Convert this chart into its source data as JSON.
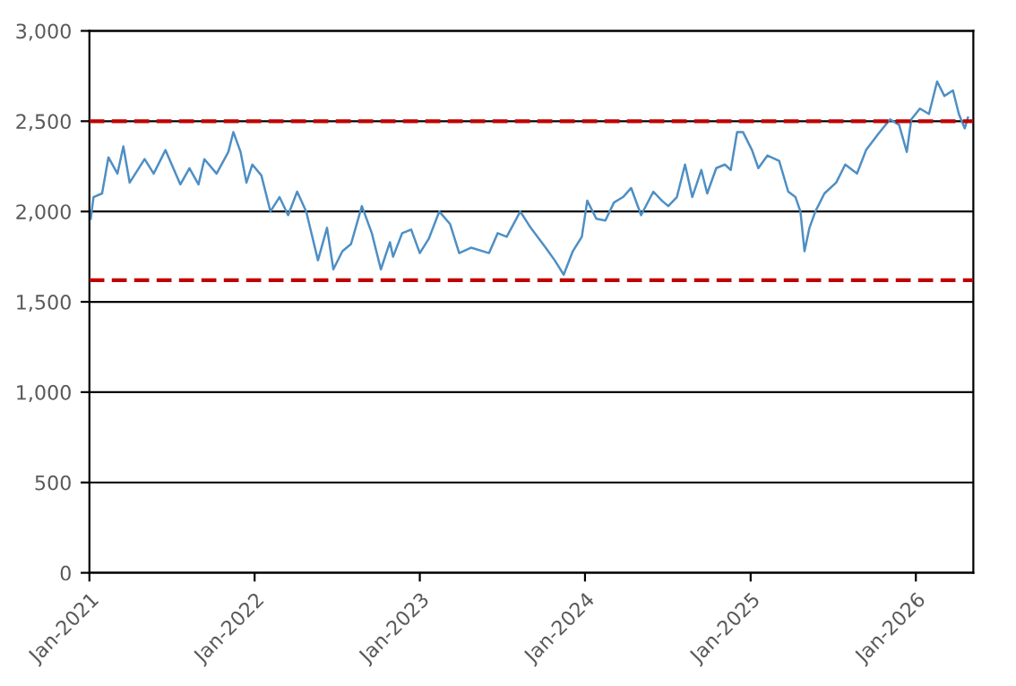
{
  "chart_data": {
    "type": "line",
    "x": [
      "2021-01-04",
      "2021-01-10",
      "2021-01-29",
      "2021-02-12",
      "2021-03-04",
      "2021-03-17",
      "2021-03-31",
      "2021-05-03",
      "2021-05-23",
      "2021-06-18",
      "2021-07-21",
      "2021-08-10",
      "2021-08-30",
      "2021-09-12",
      "2021-10-09",
      "2021-11-04",
      "2021-11-15",
      "2021-12-01",
      "2021-12-14",
      "2021-12-27",
      "2022-01-16",
      "2022-02-05",
      "2022-02-25",
      "2022-03-16",
      "2022-04-05",
      "2022-04-25",
      "2022-05-21",
      "2022-06-10",
      "2022-06-24",
      "2022-07-14",
      "2022-08-02",
      "2022-08-26",
      "2022-09-17",
      "2022-10-07",
      "2022-10-27",
      "2022-11-03",
      "2022-11-23",
      "2022-12-13",
      "2023-01-01",
      "2023-01-21",
      "2023-02-13",
      "2023-03-09",
      "2023-03-29",
      "2023-04-24",
      "2023-06-03",
      "2023-06-22",
      "2023-07-12",
      "2023-08-11",
      "2023-09-03",
      "2023-10-06",
      "2023-10-26",
      "2023-11-15",
      "2023-12-05",
      "2023-12-25",
      "2024-01-06",
      "2024-01-26",
      "2024-02-15",
      "2024-03-05",
      "2024-03-25",
      "2024-04-12",
      "2024-05-04",
      "2024-05-31",
      "2024-06-19",
      "2024-07-03",
      "2024-07-22",
      "2024-08-09",
      "2024-08-25",
      "2024-09-14",
      "2024-09-27",
      "2024-10-17",
      "2024-11-05",
      "2024-11-18",
      "2024-12-02",
      "2024-12-15",
      "2025-01-04",
      "2025-01-18",
      "2025-02-07",
      "2025-03-05",
      "2025-03-25",
      "2025-04-10",
      "2025-04-21",
      "2025-04-30",
      "2025-05-11",
      "2025-05-24",
      "2025-06-13",
      "2025-07-09",
      "2025-07-29",
      "2025-08-24",
      "2025-09-13",
      "2025-10-10",
      "2025-11-05",
      "2025-11-25",
      "2025-12-12",
      "2025-12-22",
      "2026-01-10",
      "2026-01-30",
      "2026-02-17",
      "2026-03-05",
      "2026-03-24",
      "2026-04-06",
      "2026-04-19",
      "2026-04-26"
    ],
    "series": [
      {
        "color": "#4e8fc4",
        "values": [
          1960,
          2080,
          2100,
          2300,
          2210,
          2360,
          2160,
          2290,
          2210,
          2340,
          2150,
          2240,
          2150,
          2290,
          2210,
          2330,
          2440,
          2330,
          2160,
          2260,
          2200,
          2000,
          2080,
          1980,
          2110,
          2000,
          1730,
          1910,
          1680,
          1780,
          1820,
          2030,
          1880,
          1680,
          1830,
          1750,
          1880,
          1900,
          1770,
          1850,
          2000,
          1930,
          1770,
          1800,
          1770,
          1880,
          1860,
          2000,
          1910,
          1800,
          1730,
          1650,
          1780,
          1860,
          2060,
          1960,
          1950,
          2050,
          2080,
          2130,
          1980,
          2110,
          2060,
          2030,
          2080,
          2260,
          2080,
          2230,
          2100,
          2240,
          2260,
          2230,
          2440,
          2440,
          2340,
          2240,
          2310,
          2280,
          2110,
          2080,
          2000,
          1780,
          1910,
          2000,
          2100,
          2160,
          2260,
          2210,
          2340,
          2430,
          2510,
          2480,
          2330,
          2510,
          2570,
          2540,
          2720,
          2640,
          2670,
          2540,
          2460,
          2520
        ]
      }
    ],
    "xlim": [
      "2021-01-01",
      "2026-05-08"
    ],
    "xticks": [
      {
        "value": "2021-01-01",
        "label": "Jan-2021"
      },
      {
        "value": "2022-01-01",
        "label": "Jan-2022"
      },
      {
        "value": "2023-01-01",
        "label": "Jan-2023"
      },
      {
        "value": "2024-01-01",
        "label": "Jan-2024"
      },
      {
        "value": "2025-01-01",
        "label": "Jan-2025"
      },
      {
        "value": "2026-01-01",
        "label": "Jan-2026"
      }
    ],
    "ylim": [
      0,
      3000
    ],
    "yticks": [
      0,
      {
        "value": 500,
        "label": "500"
      },
      {
        "value": 1000,
        "label": "1,000"
      },
      {
        "value": 1500,
        "label": "1,500"
      },
      {
        "value": 2000,
        "label": "2,000"
      },
      {
        "value": 2500,
        "label": "2,500"
      },
      {
        "value": 3000,
        "label": "3,000"
      }
    ],
    "grid": "y",
    "legend": false,
    "marker": "none",
    "line_style": "solid",
    "ref_lines": [
      {
        "axis": "y",
        "value": 2500,
        "color": "#c00000",
        "line_style": "dashed"
      },
      {
        "axis": "y",
        "value": 1620,
        "color": "#c00000",
        "line_style": "dashed"
      }
    ]
  }
}
